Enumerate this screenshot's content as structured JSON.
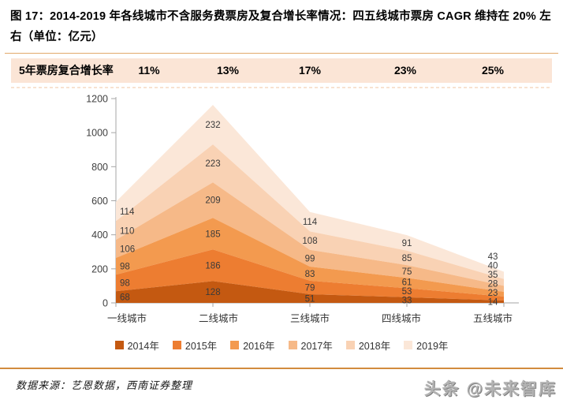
{
  "title": "图 17：2014-2019 年各线城市不含服务费票房及复合增长率情况：四五线城市票房 CAGR 维持在 20% 左右（单位：亿元）",
  "cagr_bar": {
    "label": "5年票房复合增长率",
    "values": [
      "11%",
      "13%",
      "17%",
      "23%",
      "25%"
    ],
    "background": "#fbe5d6"
  },
  "chart_data": {
    "type": "area",
    "stacked": true,
    "categories": [
      "一线城市",
      "二线城市",
      "三线城市",
      "四线城市",
      "五线城市"
    ],
    "series": [
      {
        "name": "2014年",
        "color": "#c45911",
        "values": [
          68,
          128,
          51,
          33,
          14
        ]
      },
      {
        "name": "2015年",
        "color": "#ed7d31",
        "values": [
          98,
          186,
          79,
          53,
          23
        ]
      },
      {
        "name": "2016年",
        "color": "#f39a4f",
        "values": [
          98,
          185,
          83,
          61,
          28
        ]
      },
      {
        "name": "2017年",
        "color": "#f6b988",
        "values": [
          106,
          209,
          99,
          75,
          35
        ]
      },
      {
        "name": "2018年",
        "color": "#f9d2b4",
        "values": [
          110,
          223,
          108,
          85,
          40
        ]
      },
      {
        "name": "2019年",
        "color": "#fbe7d8",
        "values": [
          114,
          232,
          114,
          91,
          43
        ]
      }
    ],
    "ylim": [
      0,
      1200
    ],
    "ytick_step": 200,
    "grid": false,
    "legend_position": "bottom",
    "unit": "亿元",
    "axis_color": "#a6a6a6",
    "label_color": "#3a3a3a"
  },
  "footer": {
    "source": "数据来源：艺恩数据，西南证券整理",
    "watermark": "头条 @未来智库"
  }
}
